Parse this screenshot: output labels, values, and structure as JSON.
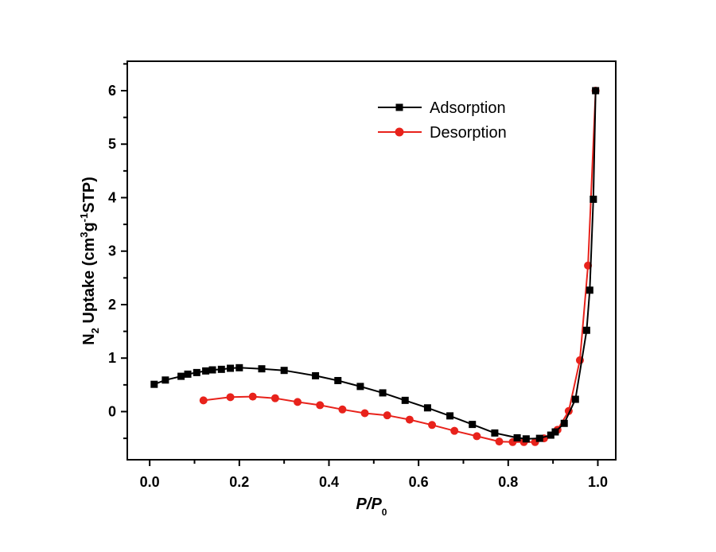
{
  "chart_data": {
    "type": "line",
    "xlabel": {
      "main": "P",
      "sep": "/",
      "main2": "P",
      "sub": "0"
    },
    "ylabel": {
      "pre": "N",
      "sub": "2",
      "mid": " Uptake (cm",
      "sup1": "3",
      "g": "g",
      "sup2": "-1",
      "post": "STP)"
    },
    "xlim": [
      -0.05,
      1.04
    ],
    "ylim": [
      -0.9,
      6.55
    ],
    "xticks": [
      {
        "v": 0.0,
        "label": "0.0"
      },
      {
        "v": 0.2,
        "label": "0.2"
      },
      {
        "v": 0.4,
        "label": "0.4"
      },
      {
        "v": 0.6,
        "label": "0.6"
      },
      {
        "v": 0.8,
        "label": "0.8"
      },
      {
        "v": 1.0,
        "label": "1.0"
      }
    ],
    "yticks": [
      {
        "v": 0,
        "label": "0"
      },
      {
        "v": 1,
        "label": "1"
      },
      {
        "v": 2,
        "label": "2"
      },
      {
        "v": 3,
        "label": "3"
      },
      {
        "v": 4,
        "label": "4"
      },
      {
        "v": 5,
        "label": "5"
      },
      {
        "v": 6,
        "label": "6"
      }
    ],
    "legend_position": "top-right",
    "series": [
      {
        "name": "Adsorption",
        "color": "#000000",
        "marker": "square",
        "points": [
          [
            0.01,
            0.51
          ],
          [
            0.035,
            0.59
          ],
          [
            0.07,
            0.66
          ],
          [
            0.085,
            0.7
          ],
          [
            0.105,
            0.73
          ],
          [
            0.125,
            0.76
          ],
          [
            0.14,
            0.78
          ],
          [
            0.16,
            0.79
          ],
          [
            0.18,
            0.81
          ],
          [
            0.2,
            0.82
          ],
          [
            0.25,
            0.8
          ],
          [
            0.3,
            0.77
          ],
          [
            0.37,
            0.67
          ],
          [
            0.42,
            0.58
          ],
          [
            0.47,
            0.47
          ],
          [
            0.52,
            0.35
          ],
          [
            0.57,
            0.21
          ],
          [
            0.62,
            0.07
          ],
          [
            0.67,
            -0.08
          ],
          [
            0.72,
            -0.24
          ],
          [
            0.77,
            -0.4
          ],
          [
            0.82,
            -0.49
          ],
          [
            0.84,
            -0.51
          ],
          [
            0.87,
            -0.5
          ],
          [
            0.895,
            -0.44
          ],
          [
            0.905,
            -0.38
          ],
          [
            0.925,
            -0.22
          ],
          [
            0.95,
            0.23
          ],
          [
            0.975,
            1.52
          ],
          [
            0.982,
            2.27
          ],
          [
            0.99,
            3.97
          ],
          [
            0.995,
            6.0
          ]
        ]
      },
      {
        "name": "Desorption",
        "color": "#e8221b",
        "marker": "circle",
        "points": [
          [
            0.12,
            0.21
          ],
          [
            0.18,
            0.27
          ],
          [
            0.23,
            0.28
          ],
          [
            0.28,
            0.25
          ],
          [
            0.33,
            0.18
          ],
          [
            0.38,
            0.12
          ],
          [
            0.43,
            0.04
          ],
          [
            0.48,
            -0.03
          ],
          [
            0.53,
            -0.07
          ],
          [
            0.58,
            -0.15
          ],
          [
            0.63,
            -0.25
          ],
          [
            0.68,
            -0.36
          ],
          [
            0.73,
            -0.46
          ],
          [
            0.78,
            -0.56
          ],
          [
            0.81,
            -0.57
          ],
          [
            0.835,
            -0.57
          ],
          [
            0.86,
            -0.57
          ],
          [
            0.88,
            -0.5
          ],
          [
            0.91,
            -0.34
          ],
          [
            0.935,
            0.01
          ],
          [
            0.96,
            0.96
          ],
          [
            0.978,
            2.73
          ],
          [
            0.995,
            6.0
          ]
        ]
      }
    ]
  }
}
